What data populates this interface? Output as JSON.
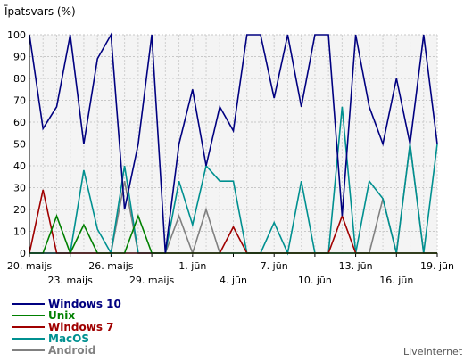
{
  "chart_data": {
    "type": "line",
    "title": "Īpatsvars (%)",
    "ylim": [
      0,
      100
    ],
    "y_ticks": [
      0,
      10,
      20,
      30,
      40,
      50,
      60,
      70,
      80,
      90,
      100
    ],
    "grid": true,
    "x_tick_labels_row1": [
      {
        "index": 0,
        "label": "20. maijs"
      },
      {
        "index": 6,
        "label": "26. maijs"
      },
      {
        "index": 12,
        "label": "1. jūn"
      },
      {
        "index": 18,
        "label": "7. jūn"
      },
      {
        "index": 24,
        "label": "13. jūn"
      },
      {
        "index": 30,
        "label": "19. jūn"
      }
    ],
    "x_tick_labels_row2": [
      {
        "index": 3,
        "label": "23. maijs"
      },
      {
        "index": 9,
        "label": "29. maijs"
      },
      {
        "index": 15,
        "label": "4. jūn"
      },
      {
        "index": 21,
        "label": "10. jūn"
      },
      {
        "index": 27,
        "label": "16. jūn"
      }
    ],
    "legend_position": "bottom-left",
    "series": [
      {
        "name": "Windows 10",
        "color": "#000080",
        "values": [
          100,
          57,
          67,
          100,
          50,
          89,
          100,
          20,
          50,
          100,
          0,
          50,
          75,
          40,
          67,
          56,
          100,
          100,
          71,
          100,
          67,
          100,
          100,
          17,
          100,
          67,
          50,
          80,
          50,
          100,
          50
        ]
      },
      {
        "name": "Unix",
        "color": "#008000",
        "values": [
          0,
          0,
          17,
          0,
          13,
          0,
          0,
          0,
          17,
          0,
          0,
          0,
          0,
          0,
          0,
          0,
          0,
          0,
          0,
          0,
          0,
          0,
          0,
          0,
          0,
          0,
          0,
          0,
          0,
          0,
          0
        ]
      },
      {
        "name": "Windows 7",
        "color": "#a00000",
        "values": [
          0,
          29,
          0,
          0,
          0,
          0,
          0,
          0,
          0,
          0,
          0,
          0,
          0,
          0,
          0,
          12,
          0,
          0,
          0,
          0,
          0,
          0,
          0,
          17,
          0,
          0,
          0,
          0,
          0,
          0,
          0
        ]
      },
      {
        "name": "MacOS",
        "color": "#009090",
        "values": [
          0,
          0,
          0,
          0,
          38,
          11,
          0,
          40,
          0,
          0,
          0,
          33,
          13,
          40,
          33,
          33,
          0,
          0,
          14,
          0,
          33,
          0,
          0,
          67,
          0,
          33,
          25,
          0,
          50,
          0,
          50
        ]
      },
      {
        "name": "Android",
        "color": "#808080",
        "values": [
          0,
          0,
          0,
          0,
          0,
          0,
          0,
          33,
          0,
          0,
          0,
          17,
          0,
          20,
          0,
          0,
          0,
          0,
          0,
          0,
          0,
          0,
          0,
          0,
          0,
          0,
          25,
          0,
          50,
          0,
          0
        ]
      }
    ]
  },
  "brand": "LiveInternet"
}
